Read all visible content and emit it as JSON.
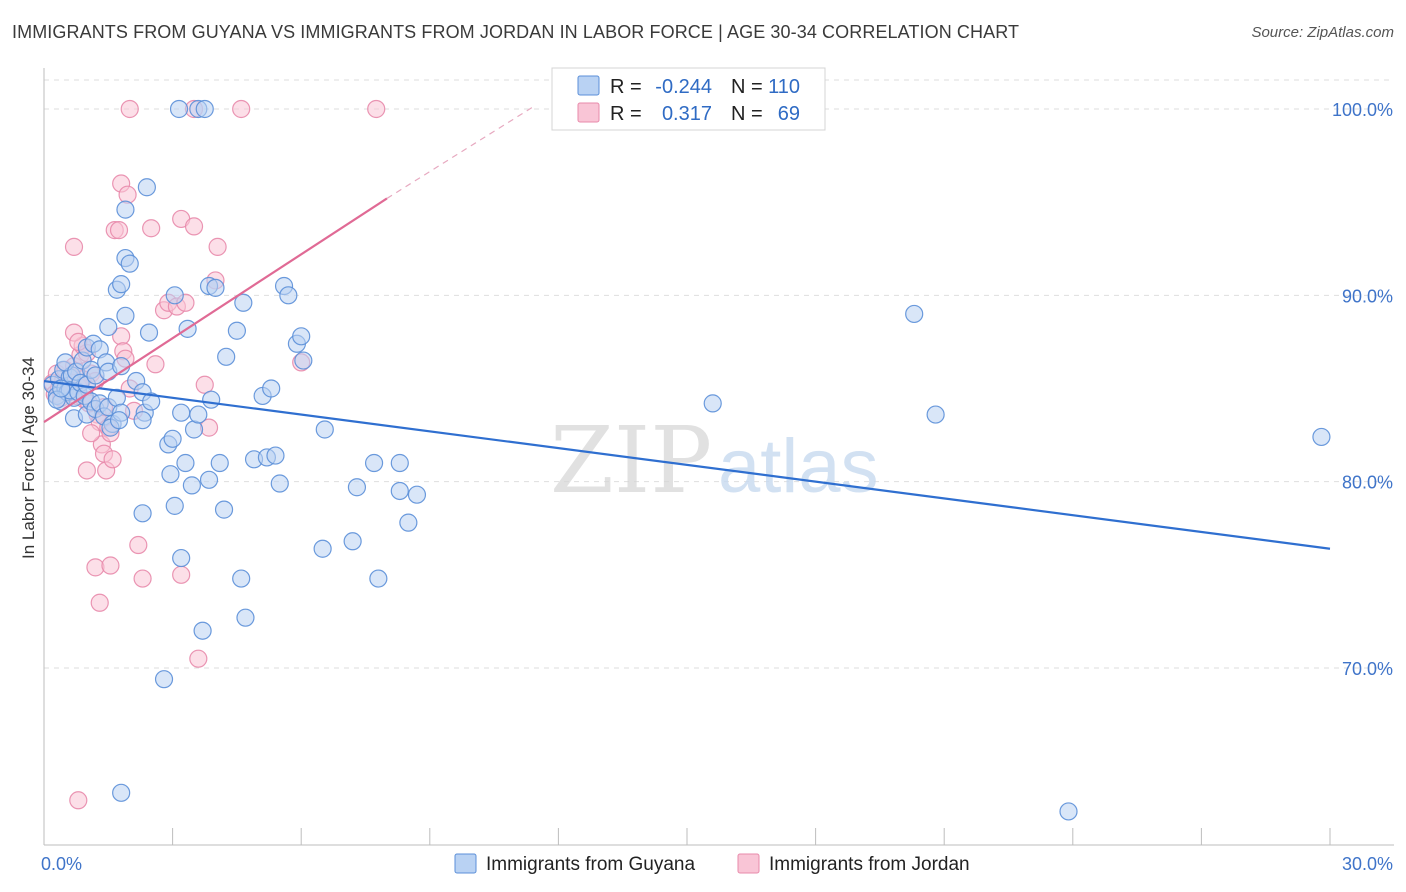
{
  "header": {
    "title": "IMMIGRANTS FROM GUYANA VS IMMIGRANTS FROM JORDAN IN LABOR FORCE | AGE 30-34 CORRELATION CHART",
    "source": "Source: ZipAtlas.com"
  },
  "watermark": {
    "zip": "ZIP",
    "atlas": "atlas"
  },
  "colors": {
    "guyana_fill": "#b9d2f3",
    "guyana_stroke": "#5b8fd8",
    "guyana_line": "#2f6fd0",
    "jordan_fill": "#f9c5d6",
    "jordan_stroke": "#e88aab",
    "jordan_line": "#e06a95",
    "grid": "#dedede",
    "axis_text": "#3f74c9"
  },
  "legend": {
    "rows": [
      {
        "r_label": "R =",
        "r_value": "-0.244",
        "n_label": "N =",
        "n_value": "110"
      },
      {
        "r_label": "R =",
        "r_value": "0.317",
        "n_label": "N =",
        "n_value": "69"
      }
    ]
  },
  "chart_data": {
    "type": "scatter",
    "title": "IMMIGRANTS FROM GUYANA VS IMMIGRANTS FROM JORDAN IN LABOR FORCE | AGE 30-34 CORRELATION CHART",
    "xlabel": "",
    "ylabel": "In Labor Force | Age 30-34",
    "xlim": [
      0,
      30
    ],
    "ylim": [
      60.5,
      102.2
    ],
    "x_tick_labels": [
      "0.0%",
      "30.0%"
    ],
    "y_ticks": [
      70,
      80,
      90,
      100
    ],
    "y_tick_labels": [
      "70.0%",
      "80.0%",
      "90.0%",
      "100.0%"
    ],
    "grid": true,
    "legend_position": "top-center",
    "series": [
      {
        "name": "Immigrants from Guyana",
        "R": -0.244,
        "N": 110,
        "trend": {
          "x": [
            0,
            30
          ],
          "y": [
            85.4,
            76.4
          ],
          "dashed_extension": false
        },
        "points": [
          [
            0.2,
            85.2
          ],
          [
            0.3,
            84.6
          ],
          [
            0.35,
            85.5
          ],
          [
            0.4,
            84.3
          ],
          [
            0.45,
            86.0
          ],
          [
            0.5,
            85.0
          ],
          [
            0.55,
            84.8
          ],
          [
            0.6,
            85.6
          ],
          [
            0.65,
            85.7
          ],
          [
            0.7,
            84.5
          ],
          [
            0.5,
            86.4
          ],
          [
            0.6,
            84.9
          ],
          [
            0.7,
            83.4
          ],
          [
            0.75,
            85.9
          ],
          [
            0.8,
            84.8
          ],
          [
            0.85,
            85.3
          ],
          [
            0.9,
            86.5
          ],
          [
            0.95,
            84.6
          ],
          [
            1.0,
            85.2
          ],
          [
            0.3,
            84.4
          ],
          [
            0.4,
            85.0
          ],
          [
            1.0,
            87.2
          ],
          [
            1.1,
            86.0
          ],
          [
            1.2,
            85.7
          ],
          [
            1.0,
            83.6
          ],
          [
            1.1,
            84.3
          ],
          [
            1.2,
            83.9
          ],
          [
            1.3,
            84.2
          ],
          [
            1.4,
            83.5
          ],
          [
            1.5,
            84.0
          ],
          [
            1.6,
            83.1
          ],
          [
            1.7,
            84.5
          ],
          [
            1.8,
            83.7
          ],
          [
            1.15,
            87.4
          ],
          [
            1.3,
            87.1
          ],
          [
            1.45,
            86.4
          ],
          [
            1.5,
            85.9
          ],
          [
            1.55,
            82.9
          ],
          [
            1.75,
            83.3
          ],
          [
            1.8,
            86.2
          ],
          [
            1.5,
            88.3
          ],
          [
            1.7,
            90.3
          ],
          [
            1.8,
            90.6
          ],
          [
            1.9,
            88.9
          ],
          [
            1.9,
            94.6
          ],
          [
            1.9,
            92.0
          ],
          [
            2.0,
            91.7
          ],
          [
            2.15,
            85.4
          ],
          [
            2.3,
            84.8
          ],
          [
            2.35,
            83.7
          ],
          [
            2.3,
            83.3
          ],
          [
            2.4,
            95.8
          ],
          [
            2.45,
            88.0
          ],
          [
            2.5,
            84.3
          ],
          [
            2.3,
            78.3
          ],
          [
            2.8,
            69.4
          ],
          [
            2.9,
            82.0
          ],
          [
            2.95,
            80.4
          ],
          [
            3.0,
            82.3
          ],
          [
            3.05,
            78.7
          ],
          [
            3.05,
            90.0
          ],
          [
            3.2,
            75.9
          ],
          [
            3.2,
            83.7
          ],
          [
            3.3,
            81.0
          ],
          [
            3.35,
            88.2
          ],
          [
            3.45,
            79.8
          ],
          [
            3.5,
            82.8
          ],
          [
            3.6,
            83.6
          ],
          [
            3.7,
            72.0
          ],
          [
            3.85,
            80.1
          ],
          [
            3.9,
            84.4
          ],
          [
            3.85,
            90.5
          ],
          [
            4.0,
            90.4
          ],
          [
            4.1,
            81.0
          ],
          [
            4.2,
            78.5
          ],
          [
            4.25,
            86.7
          ],
          [
            4.5,
            88.1
          ],
          [
            4.6,
            74.8
          ],
          [
            4.65,
            89.6
          ],
          [
            4.7,
            72.7
          ],
          [
            4.9,
            81.2
          ],
          [
            5.1,
            84.6
          ],
          [
            5.2,
            81.3
          ],
          [
            5.3,
            85.0
          ],
          [
            5.4,
            81.4
          ],
          [
            5.5,
            79.9
          ],
          [
            5.6,
            90.5
          ],
          [
            5.7,
            90.0
          ],
          [
            5.9,
            87.4
          ],
          [
            6.0,
            87.8
          ],
          [
            6.05,
            86.5
          ],
          [
            6.5,
            76.4
          ],
          [
            6.55,
            82.8
          ],
          [
            7.2,
            76.8
          ],
          [
            7.3,
            79.7
          ],
          [
            7.7,
            81.0
          ],
          [
            7.8,
            74.8
          ],
          [
            8.3,
            79.5
          ],
          [
            8.3,
            81.0
          ],
          [
            8.5,
            77.8
          ],
          [
            8.7,
            79.3
          ],
          [
            1.8,
            63.3
          ],
          [
            3.15,
            100.0
          ],
          [
            3.6,
            100.0
          ],
          [
            3.75,
            100.0
          ],
          [
            15.6,
            84.2
          ],
          [
            20.3,
            89.0
          ],
          [
            20.8,
            83.6
          ],
          [
            23.9,
            62.3
          ],
          [
            29.8,
            82.4
          ]
        ]
      },
      {
        "name": "Immigrants from Jordan",
        "R": 0.317,
        "N": 69,
        "trend": {
          "x": [
            0,
            8.0
          ],
          "y": [
            83.2,
            95.2
          ],
          "dashed_extension": true,
          "dashed_to": [
            11.4,
            100.1
          ]
        },
        "points": [
          [
            0.2,
            85.3
          ],
          [
            0.25,
            84.7
          ],
          [
            0.3,
            85.8
          ],
          [
            0.35,
            85.0
          ],
          [
            0.4,
            84.5
          ],
          [
            0.45,
            85.5
          ],
          [
            0.5,
            86.0
          ],
          [
            0.55,
            85.2
          ],
          [
            0.6,
            84.8
          ],
          [
            0.65,
            85.6
          ],
          [
            0.7,
            86.2
          ],
          [
            0.75,
            84.6
          ],
          [
            0.8,
            85.1
          ],
          [
            0.85,
            86.8
          ],
          [
            0.9,
            87.3
          ],
          [
            0.95,
            84.4
          ],
          [
            1.0,
            86.9
          ],
          [
            0.7,
            88.0
          ],
          [
            0.8,
            87.5
          ],
          [
            0.7,
            92.6
          ],
          [
            1.1,
            85.8
          ],
          [
            1.2,
            85.4
          ],
          [
            1.25,
            83.6
          ],
          [
            1.3,
            83.2
          ],
          [
            1.35,
            82.0
          ],
          [
            1.4,
            81.5
          ],
          [
            1.45,
            80.6
          ],
          [
            1.5,
            82.9
          ],
          [
            1.55,
            82.6
          ],
          [
            1.6,
            81.2
          ],
          [
            1.0,
            80.6
          ],
          [
            1.1,
            82.6
          ],
          [
            1.2,
            75.4
          ],
          [
            1.3,
            73.5
          ],
          [
            1.55,
            75.5
          ],
          [
            1.65,
            93.5
          ],
          [
            1.75,
            93.5
          ],
          [
            1.8,
            96.0
          ],
          [
            1.95,
            95.4
          ],
          [
            1.8,
            87.8
          ],
          [
            1.85,
            87.0
          ],
          [
            1.9,
            86.6
          ],
          [
            2.1,
            83.8
          ],
          [
            2.2,
            76.6
          ],
          [
            2.3,
            74.8
          ],
          [
            2.5,
            93.6
          ],
          [
            2.6,
            86.3
          ],
          [
            2.8,
            89.2
          ],
          [
            2.9,
            89.6
          ],
          [
            3.1,
            89.4
          ],
          [
            3.2,
            75.0
          ],
          [
            3.2,
            94.1
          ],
          [
            3.3,
            89.6
          ],
          [
            3.5,
            93.7
          ],
          [
            3.6,
            70.5
          ],
          [
            3.75,
            85.2
          ],
          [
            3.85,
            82.9
          ],
          [
            4.0,
            90.8
          ],
          [
            4.05,
            92.6
          ],
          [
            0.8,
            62.9
          ],
          [
            2.0,
            100.0
          ],
          [
            3.5,
            100.0
          ],
          [
            4.6,
            100.0
          ],
          [
            7.75,
            100.0
          ],
          [
            6.0,
            86.4
          ],
          [
            1.05,
            84.2
          ],
          [
            0.9,
            85.5
          ],
          [
            1.4,
            84.0
          ],
          [
            2.0,
            85.0
          ]
        ]
      }
    ]
  }
}
